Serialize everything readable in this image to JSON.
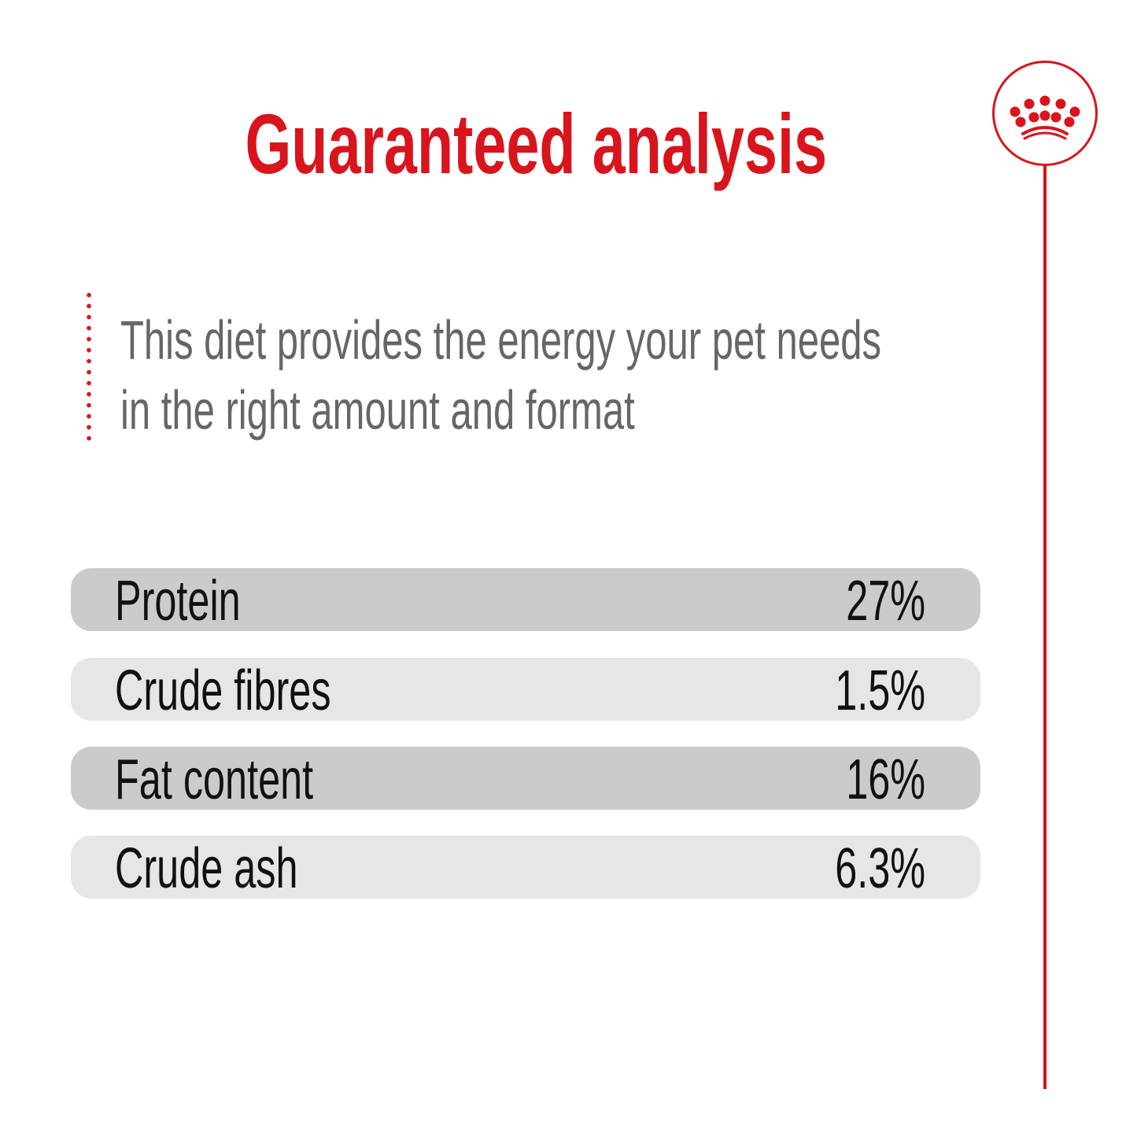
{
  "title": "Guaranteed analysis",
  "subtitle": {
    "line1": "This diet provides the energy your pet needs",
    "line2": "in the right amount and format"
  },
  "rows": [
    {
      "label": "Protein",
      "value": "27%"
    },
    {
      "label": "Crude fibres",
      "value": "1.5%"
    },
    {
      "label": "Fat content",
      "value": "16%"
    },
    {
      "label": "Crude ash",
      "value": "6.3%"
    }
  ],
  "logo": {
    "icon": "crown-icon"
  },
  "colors": {
    "accent": "#d8141c",
    "row_dark": "#cbcbcb",
    "row_light": "#e6e6e6",
    "subtitle": "#666666"
  }
}
